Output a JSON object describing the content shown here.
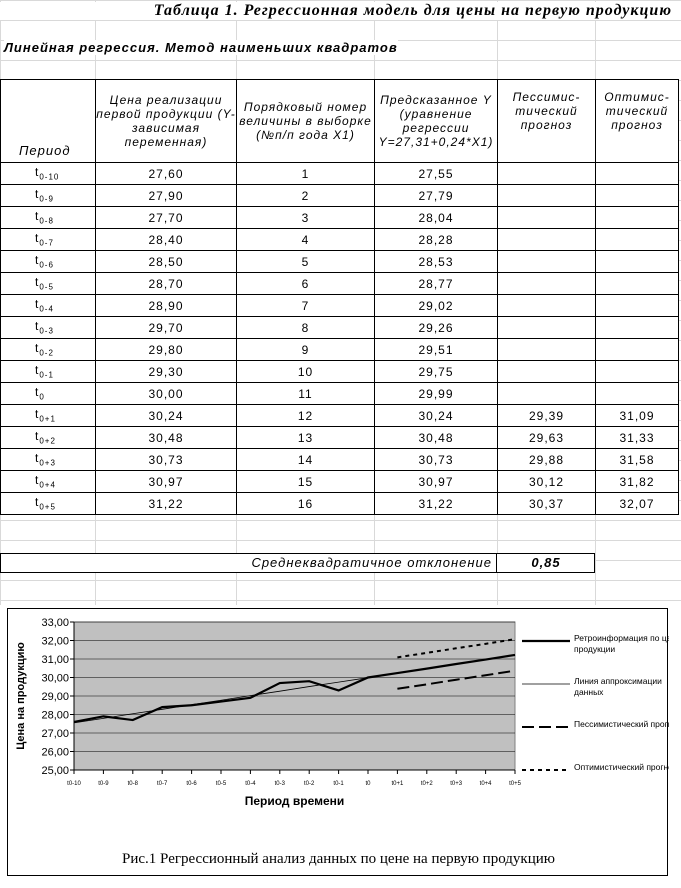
{
  "title": "Таблица 1. Регрессионная модель для цены на первую продукцию",
  "subtitle": "Линейная регрессия. Метод наименьших квадратов",
  "table": {
    "headers": {
      "period": "Период",
      "price": "Цена реализации первой продукции (Y-зависимая переменная)",
      "order": "Порядковый номер величины в выборке (№п/п года X1)",
      "predicted": "Предсказанное Y (уравнение регрессии Y=27,31+0,24*X1)",
      "pessimistic": "Пессимис-тический прогноз",
      "optimistic": "Оптимис-тический прогноз"
    },
    "rows": [
      {
        "t": "t",
        "sub": "0-10",
        "price": "27,60",
        "n": "1",
        "pred": "27,55",
        "pess": "",
        "opt": ""
      },
      {
        "t": "t",
        "sub": "0-9",
        "price": "27,90",
        "n": "2",
        "pred": "27,79",
        "pess": "",
        "opt": ""
      },
      {
        "t": "t",
        "sub": "0-8",
        "price": "27,70",
        "n": "3",
        "pred": "28,04",
        "pess": "",
        "opt": ""
      },
      {
        "t": "t",
        "sub": "0-7",
        "price": "28,40",
        "n": "4",
        "pred": "28,28",
        "pess": "",
        "opt": ""
      },
      {
        "t": "t",
        "sub": "0-6",
        "price": "28,50",
        "n": "5",
        "pred": "28,53",
        "pess": "",
        "opt": ""
      },
      {
        "t": "t",
        "sub": "0-5",
        "price": "28,70",
        "n": "6",
        "pred": "28,77",
        "pess": "",
        "opt": ""
      },
      {
        "t": "t",
        "sub": "0-4",
        "price": "28,90",
        "n": "7",
        "pred": "29,02",
        "pess": "",
        "opt": ""
      },
      {
        "t": "t",
        "sub": "0-3",
        "price": "29,70",
        "n": "8",
        "pred": "29,26",
        "pess": "",
        "opt": ""
      },
      {
        "t": "t",
        "sub": "0-2",
        "price": "29,80",
        "n": "9",
        "pred": "29,51",
        "pess": "",
        "opt": ""
      },
      {
        "t": "t",
        "sub": "0-1",
        "price": "29,30",
        "n": "10",
        "pred": "29,75",
        "pess": "",
        "opt": ""
      },
      {
        "t": "t",
        "sub": "0",
        "price": "30,00",
        "n": "11",
        "pred": "29,99",
        "pess": "",
        "opt": ""
      },
      {
        "t": "t",
        "sub": "0+1",
        "price": "30,24",
        "n": "12",
        "pred": "30,24",
        "pess": "29,39",
        "opt": "31,09"
      },
      {
        "t": "t",
        "sub": "0+2",
        "price": "30,48",
        "n": "13",
        "pred": "30,48",
        "pess": "29,63",
        "opt": "31,33"
      },
      {
        "t": "t",
        "sub": "0+3",
        "price": "30,73",
        "n": "14",
        "pred": "30,73",
        "pess": "29,88",
        "opt": "31,58"
      },
      {
        "t": "t",
        "sub": "0+4",
        "price": "30,97",
        "n": "15",
        "pred": "30,97",
        "pess": "30,12",
        "opt": "31,82"
      },
      {
        "t": "t",
        "sub": "0+5",
        "price": "31,22",
        "n": "16",
        "pred": "31,22",
        "pess": "30,37",
        "opt": "32,07"
      }
    ]
  },
  "std_dev": {
    "label": "Среднеквадратичное отклонение",
    "value": "0,85"
  },
  "chart_data": {
    "type": "line",
    "ylabel": "Цена на продукцию",
    "xlabel": "Период времени",
    "ylim": [
      25,
      33
    ],
    "ytick_labels": [
      "33,00",
      "32,00",
      "31,00",
      "30,00",
      "29,00",
      "28,00",
      "27,00",
      "26,00",
      "25,00"
    ],
    "categories": [
      "t0-10",
      "t0-9",
      "t0-8",
      "t0-7",
      "t0-6",
      "t0-5",
      "t0-4",
      "t0-3",
      "t0-2",
      "t0-1",
      "t0",
      "t0+1",
      "t0+2",
      "t0+3",
      "t0+4",
      "t0+5"
    ],
    "series": [
      {
        "name": "Ретроинформация по цене продукции",
        "style": "thick",
        "values": [
          27.6,
          27.9,
          27.7,
          28.4,
          28.5,
          28.7,
          28.9,
          29.7,
          29.8,
          29.3,
          30.0,
          30.24,
          30.48,
          30.73,
          30.97,
          31.22
        ]
      },
      {
        "name": "Линия аппроксимации данных",
        "style": "thin",
        "values": [
          27.55,
          27.79,
          28.04,
          28.28,
          28.53,
          28.77,
          29.02,
          29.26,
          29.51,
          29.75,
          29.99,
          30.24,
          30.48,
          30.73,
          30.97,
          31.22
        ]
      },
      {
        "name": "Пессимистический прогноз",
        "style": "longdash",
        "values": [
          null,
          null,
          null,
          null,
          null,
          null,
          null,
          null,
          null,
          null,
          null,
          29.39,
          29.63,
          29.88,
          30.12,
          30.37
        ]
      },
      {
        "name": "Оптимистический прогноз",
        "style": "shortdash",
        "values": [
          null,
          null,
          null,
          null,
          null,
          null,
          null,
          null,
          null,
          null,
          null,
          31.09,
          31.33,
          31.58,
          31.82,
          32.07
        ]
      }
    ],
    "grid": true,
    "plot_background": "#c0c0c0",
    "legend_position": "right"
  },
  "caption": "Рис.1 Регрессионный анализ данных по цене на первую продукцию"
}
